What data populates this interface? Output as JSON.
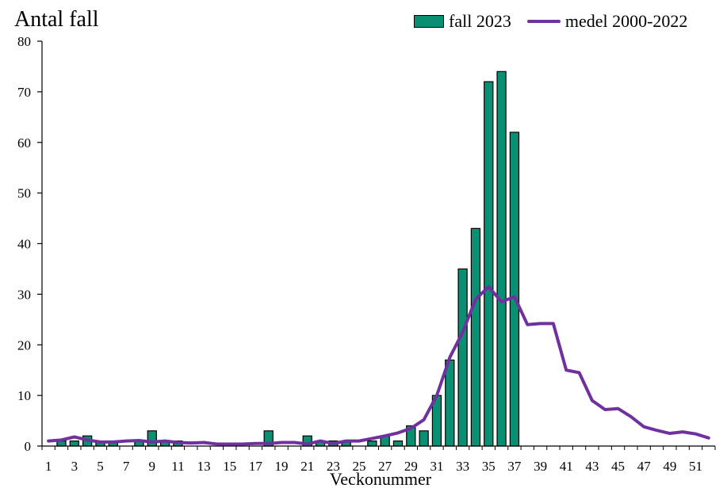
{
  "chart_data": {
    "type": "bar",
    "title": "",
    "ylabel": "Antal fall",
    "xlabel": "Veckonummer",
    "ylim": [
      0,
      80
    ],
    "yticks": [
      0,
      10,
      20,
      30,
      40,
      50,
      60,
      70,
      80
    ],
    "xlim": [
      1,
      52
    ],
    "xticks": [
      1,
      3,
      5,
      7,
      9,
      11,
      13,
      15,
      17,
      19,
      21,
      23,
      25,
      27,
      29,
      31,
      33,
      35,
      37,
      39,
      41,
      43,
      45,
      47,
      49,
      51
    ],
    "legend_position": "top-right",
    "series": [
      {
        "name": "fall 2023",
        "kind": "bar",
        "color": "#0b8f72",
        "x": [
          1,
          2,
          3,
          4,
          5,
          6,
          7,
          8,
          9,
          10,
          11,
          12,
          13,
          14,
          15,
          16,
          17,
          18,
          19,
          20,
          21,
          22,
          23,
          24,
          25,
          26,
          27,
          28,
          29,
          30,
          31,
          32,
          33,
          34,
          35,
          36,
          37
        ],
        "values": [
          0,
          1,
          1,
          2,
          1,
          1,
          0,
          1,
          3,
          1,
          1,
          0,
          0,
          0,
          0,
          0,
          0,
          3,
          0,
          0,
          2,
          1,
          1,
          1,
          0,
          1,
          2,
          1,
          4,
          3,
          10,
          17,
          35,
          43,
          72,
          74,
          62
        ]
      },
      {
        "name": "medel 2000-2022",
        "kind": "line",
        "color": "#7030a0",
        "x": [
          1,
          2,
          3,
          4,
          5,
          6,
          7,
          8,
          9,
          10,
          11,
          12,
          13,
          14,
          15,
          16,
          17,
          18,
          19,
          20,
          21,
          22,
          23,
          24,
          25,
          26,
          27,
          28,
          29,
          30,
          31,
          32,
          33,
          34,
          35,
          36,
          37,
          38,
          39,
          40,
          41,
          42,
          43,
          44,
          45,
          46,
          47,
          48,
          49,
          50,
          51,
          52
        ],
        "values": [
          1.0,
          1.2,
          1.8,
          1.2,
          0.8,
          0.8,
          1.0,
          1.1,
          0.8,
          1.0,
          0.7,
          0.6,
          0.7,
          0.4,
          0.4,
          0.4,
          0.5,
          0.5,
          0.7,
          0.7,
          0.4,
          1.0,
          0.5,
          1.0,
          1.0,
          1.5,
          2.0,
          2.6,
          3.5,
          5.2,
          10.0,
          17.5,
          22.5,
          29.0,
          31.5,
          28.5,
          29.5,
          24.0,
          24.2,
          24.2,
          15.0,
          14.5,
          9.0,
          7.2,
          7.4,
          5.8,
          3.8,
          3.1,
          2.5,
          2.8,
          2.4,
          1.6
        ]
      }
    ]
  }
}
